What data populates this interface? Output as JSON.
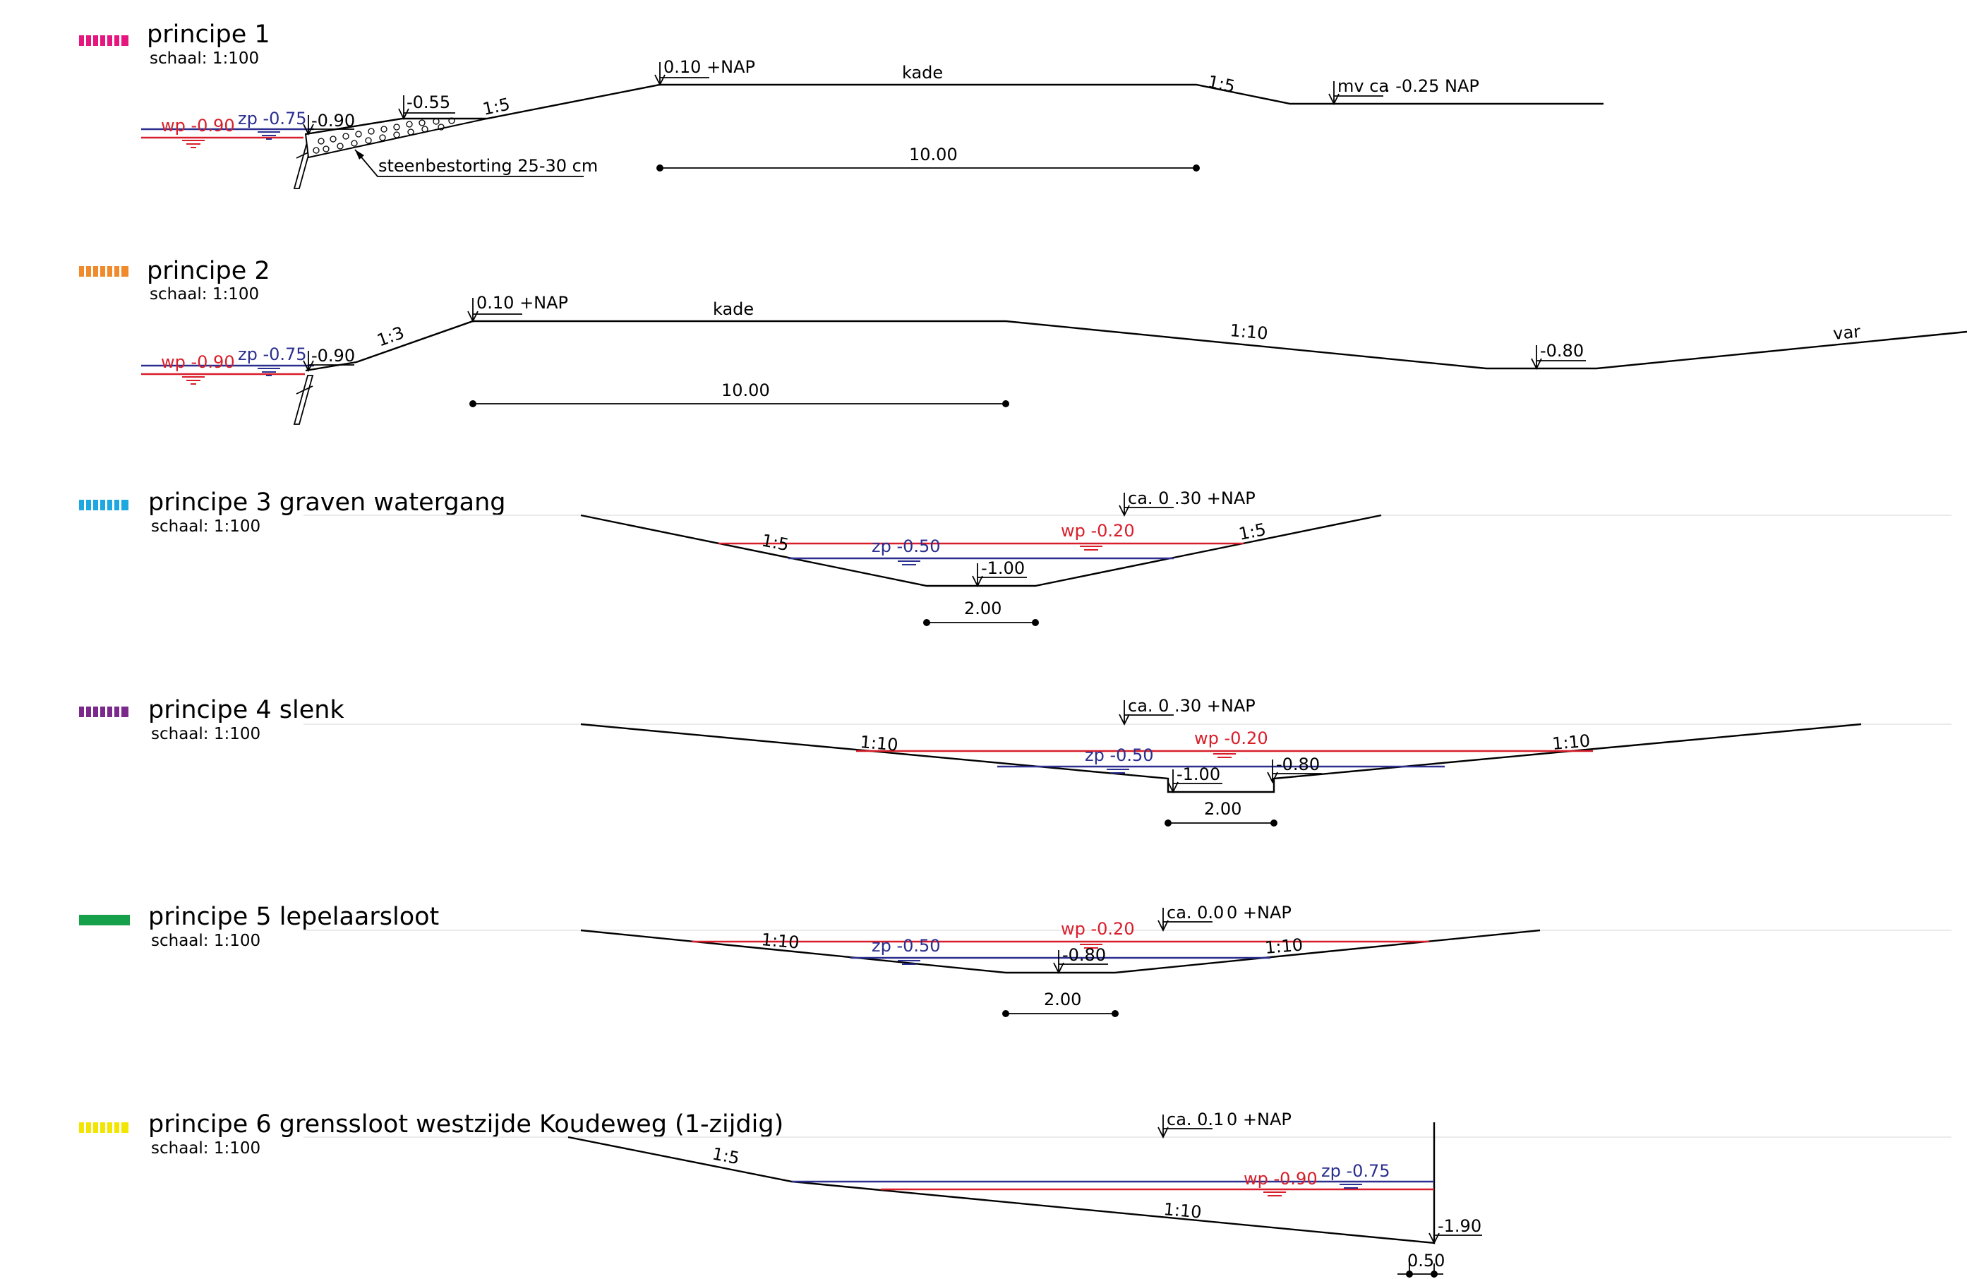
{
  "colors": {
    "p1_swatch": "#e6167f",
    "p2_swatch": "#f08a2b",
    "p3_swatch": "#1ea8e0",
    "p4_swatch": "#7b2a8c",
    "p5_swatch": "#17a04a",
    "p6_swatch": "#f2e500",
    "wp_line": "#d81e2a",
    "zp_line": "#2b2f8f"
  },
  "principe1": {
    "title": "principe 1",
    "scale": "schaal: 1:100",
    "wp": "wp -0.90",
    "zp": "zp -0.75",
    "lvl_090": "-0.90",
    "lvl_055": "-0.55",
    "slope_left": "1:5",
    "nap": "0.10 +NAP",
    "kade": "kade",
    "slope_right": "1:5",
    "mv_prefix": "mv ca",
    "mv_suffix": ". -0.25 NAP",
    "stone": "steenbestorting 25-30 cm",
    "dim": "10.00"
  },
  "principe2": {
    "title": "principe 2",
    "scale": "schaal: 1:100",
    "wp": "wp -0.90",
    "zp": "zp -0.75",
    "lvl_090": "-0.90",
    "slope_left": "1:3",
    "nap": "0.10 +NAP",
    "kade": "kade",
    "slope_right": "1:10",
    "lvl_080": "-0.80",
    "var": "var",
    "dim": "10.00"
  },
  "principe3": {
    "title": "principe 3 graven watergang",
    "scale": "schaal: 1:100",
    "nap_pre": "ca. 0",
    "nap_post": ".30 +NAP",
    "wp": "wp -0.20",
    "zp": "zp -0.50",
    "slope_left": "1:5",
    "slope_right": "1:5",
    "lvl_100": "-1.00",
    "dim": "2.00"
  },
  "principe4": {
    "title": "principe 4 slenk",
    "scale": "schaal: 1:100",
    "nap_pre": "ca. 0",
    "nap_post": ".30 +NAP",
    "wp": "wp -0.20",
    "zp": "zp -0.50",
    "slope_left": "1:10",
    "slope_right": "1:10",
    "lvl_100": "-1.00",
    "lvl_080": "-0.80",
    "dim": "2.00"
  },
  "principe5": {
    "title": "principe 5 lepelaarsloot",
    "scale": "schaal: 1:100",
    "nap_pre": "ca. 0.0",
    "nap_post": "0 +NAP",
    "wp": "wp -0.20",
    "zp": "zp -0.50",
    "slope_left": "1:10",
    "slope_right": "1:10",
    "lvl_080": "-0.80",
    "dim": "2.00"
  },
  "principe6": {
    "title": "principe 6 grenssloot westzijde Koudeweg (1-zijdig)",
    "scale": "schaal: 1:100",
    "nap_pre": "ca. 0.1",
    "nap_post": "0 +NAP",
    "slope_left": "1:5",
    "wp": "wp -0.90",
    "zp": "zp -0.75",
    "slope_bottom": "1:10",
    "lvl_190": "-1.90",
    "dim": "0.50"
  }
}
